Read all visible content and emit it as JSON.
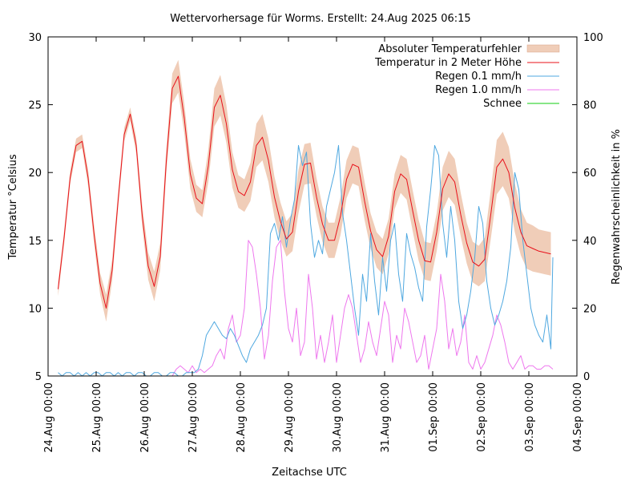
{
  "chart_data": {
    "type": "line",
    "title": "Wettervorhersage für Worms. Erstellt: 24.Aug 2025 06:15",
    "xlabel": "Zeitachse UTC",
    "ylabel": "Temperatur °Celsius",
    "y2label": "Regenwahrscheinlichkeit in %",
    "x_unit": "hours since 24.Aug 00:00",
    "xlim_hours": [
      0,
      264
    ],
    "ylim": [
      5,
      30
    ],
    "y2lim": [
      0,
      100
    ],
    "grid": false,
    "legend_position": "top-right",
    "x_ticks": [
      "24.Aug 00:00",
      "25.Aug 00:00",
      "26.Aug 00:00",
      "27.Aug 00:00",
      "28.Aug 00:00",
      "29.Aug 00:00",
      "30.Aug 00:00",
      "31.Aug 00:00",
      "01.Sep 00:00",
      "02.Sep 00:00",
      "03.Sep 00:00",
      "04.Sep 00:00"
    ],
    "y_ticks": [
      "5",
      "10",
      "15",
      "20",
      "25",
      "30"
    ],
    "y2_ticks": [
      "0",
      "20",
      "40",
      "60",
      "80",
      "100"
    ],
    "legend": [
      {
        "name": "Absoluter Temperaturfehler",
        "kind": "band",
        "color": "#f0cdb8"
      },
      {
        "name": "Temperatur in 2 Meter Höhe",
        "kind": "line",
        "color": "#e8101a"
      },
      {
        "name": "Regen 0.1 mm/h",
        "kind": "line",
        "color": "#4fa8e0"
      },
      {
        "name": "Regen 1.0 mm/h",
        "kind": "line",
        "color": "#ee77ee"
      },
      {
        "name": "Schnee",
        "kind": "line",
        "color": "#11cc11"
      }
    ],
    "temperature": {
      "hours": [
        5,
        8,
        11,
        14,
        17,
        20,
        23,
        26,
        29,
        32,
        35,
        38,
        41,
        44,
        47,
        50,
        53,
        56,
        59,
        62,
        65,
        68,
        71,
        74,
        77,
        80,
        83,
        86,
        89,
        92,
        95,
        98,
        101,
        104,
        107,
        110,
        113,
        116,
        119,
        122,
        125,
        128,
        131,
        134,
        137,
        140,
        143,
        146,
        149,
        152,
        155,
        158,
        161,
        164,
        167,
        170,
        173,
        176,
        179,
        182,
        185,
        188,
        191,
        194,
        197,
        200,
        203,
        206,
        209,
        212,
        215,
        218,
        221,
        224,
        227,
        230,
        233,
        236,
        239,
        242,
        245,
        248,
        251
      ],
      "values": [
        11.4,
        15.2,
        19.6,
        22.0,
        22.3,
        19.6,
        15.4,
        11.8,
        10.0,
        12.8,
        18.0,
        22.8,
        24.3,
        22.0,
        16.8,
        13.1,
        11.6,
        13.8,
        20.8,
        26.2,
        27.1,
        24.0,
        19.9,
        18.1,
        17.7,
        20.5,
        24.8,
        25.7,
        23.6,
        20.2,
        18.6,
        18.3,
        19.3,
        22.0,
        22.6,
        20.9,
        18.2,
        16.4,
        15.1,
        15.6,
        18.6,
        20.6,
        20.7,
        18.2,
        16.2,
        15.0,
        15.0,
        16.8,
        19.5,
        20.6,
        20.4,
        17.9,
        15.7,
        14.3,
        13.8,
        15.3,
        18.6,
        19.9,
        19.5,
        17.2,
        15.0,
        13.5,
        13.4,
        15.6,
        18.8,
        19.9,
        19.3,
        16.9,
        14.8,
        13.4,
        13.1,
        13.6,
        16.9,
        20.4,
        21.0,
        20.0,
        17.4,
        15.6,
        14.6,
        14.4,
        14.2,
        14.1,
        14.0
      ],
      "error_abs": [
        0.5,
        0.5,
        0.5,
        0.5,
        0.5,
        0.6,
        0.7,
        0.8,
        1.0,
        0.8,
        0.6,
        0.5,
        0.5,
        0.6,
        0.8,
        1.0,
        1.1,
        1.0,
        0.9,
        1.1,
        1.2,
        1.1,
        1.1,
        1.0,
        1.0,
        1.2,
        1.4,
        1.5,
        1.4,
        1.3,
        1.2,
        1.2,
        1.4,
        1.6,
        1.7,
        1.6,
        1.5,
        1.4,
        1.3,
        1.4,
        1.6,
        1.5,
        1.5,
        1.4,
        1.3,
        1.3,
        1.3,
        1.4,
        1.4,
        1.4,
        1.4,
        1.4,
        1.3,
        1.3,
        1.3,
        1.3,
        1.3,
        1.4,
        1.5,
        1.5,
        1.5,
        1.4,
        1.4,
        1.4,
        1.6,
        1.7,
        1.7,
        1.6,
        1.5,
        1.5,
        1.5,
        1.6,
        1.8,
        2.0,
        2.0,
        1.9,
        1.8,
        1.7,
        1.7,
        1.7,
        1.6,
        1.6,
        1.6
      ]
    },
    "rain_0_1_mmh": {
      "hours": [
        5,
        7,
        9,
        11,
        13,
        15,
        17,
        19,
        21,
        23,
        25,
        27,
        29,
        31,
        33,
        35,
        37,
        39,
        41,
        43,
        45,
        47,
        49,
        51,
        53,
        55,
        57,
        59,
        61,
        63,
        65,
        67,
        69,
        71,
        73,
        75,
        77,
        79,
        81,
        83,
        85,
        87,
        89,
        91,
        93,
        95,
        97,
        99,
        101,
        103,
        105,
        107,
        109,
        111,
        113,
        115,
        117,
        119,
        121,
        123,
        125,
        127,
        129,
        131,
        133,
        135,
        137,
        139,
        141,
        143,
        145,
        147,
        149,
        151,
        153,
        155,
        157,
        159,
        161,
        163,
        165,
        167,
        169,
        171,
        173,
        175,
        177,
        179,
        181,
        183,
        185,
        187,
        189,
        191,
        193,
        195,
        197,
        199,
        201,
        203,
        205,
        207,
        209,
        211,
        213,
        215,
        217,
        219,
        221,
        223,
        225,
        227,
        229,
        231,
        233,
        235,
        237,
        239,
        241,
        243,
        245,
        247,
        249,
        251,
        252
      ],
      "values": [
        1,
        0,
        1,
        1,
        0,
        1,
        0,
        1,
        0,
        1,
        1,
        0,
        1,
        1,
        0,
        1,
        0,
        1,
        1,
        0,
        1,
        1,
        0,
        0,
        1,
        1,
        0,
        0,
        1,
        1,
        0,
        0,
        1,
        1,
        1,
        2,
        6,
        12,
        14,
        16,
        14,
        12,
        11,
        14,
        12,
        9,
        6,
        4,
        8,
        10,
        12,
        15,
        20,
        42,
        45,
        40,
        47,
        38,
        46,
        52,
        68,
        62,
        66,
        45,
        35,
        40,
        36,
        50,
        55,
        60,
        68,
        48,
        40,
        30,
        20,
        12,
        30,
        22,
        42,
        28,
        18,
        35,
        25,
        40,
        45,
        30,
        22,
        42,
        36,
        32,
        26,
        22,
        44,
        55,
        68,
        65,
        45,
        35,
        50,
        40,
        22,
        14,
        18,
        25,
        35,
        50,
        45,
        28,
        20,
        15,
        18,
        22,
        28,
        38,
        60,
        55,
        40,
        30,
        20,
        15,
        12,
        10,
        18,
        8,
        35
      ],
      "note": "probability in % (right axis), approximate readings"
    },
    "rain_1_0_mmh": {
      "hours": [
        62,
        64,
        66,
        68,
        70,
        72,
        74,
        76,
        78,
        80,
        82,
        84,
        86,
        88,
        90,
        92,
        94,
        96,
        98,
        100,
        102,
        104,
        106,
        108,
        110,
        112,
        114,
        116,
        118,
        120,
        122,
        124,
        126,
        128,
        130,
        132,
        134,
        136,
        138,
        140,
        142,
        144,
        146,
        148,
        150,
        152,
        154,
        156,
        158,
        160,
        162,
        164,
        166,
        168,
        170,
        172,
        174,
        176,
        178,
        180,
        182,
        184,
        186,
        188,
        190,
        192,
        194,
        196,
        198,
        200,
        202,
        204,
        206,
        208,
        210,
        212,
        214,
        216,
        218,
        220,
        222,
        224,
        226,
        228,
        230,
        232,
        234,
        236,
        238,
        240,
        242,
        244,
        246,
        248,
        250,
        252
      ],
      "values": [
        0,
        2,
        3,
        2,
        1,
        3,
        1,
        2,
        1,
        2,
        3,
        6,
        8,
        5,
        14,
        18,
        10,
        12,
        20,
        40,
        38,
        30,
        20,
        5,
        12,
        28,
        38,
        40,
        25,
        14,
        10,
        20,
        6,
        10,
        30,
        20,
        5,
        12,
        4,
        10,
        18,
        4,
        12,
        20,
        24,
        20,
        12,
        4,
        8,
        16,
        10,
        6,
        14,
        22,
        18,
        4,
        12,
        8,
        20,
        16,
        10,
        4,
        6,
        12,
        2,
        8,
        14,
        30,
        22,
        8,
        14,
        6,
        10,
        18,
        4,
        2,
        6,
        2,
        4,
        8,
        12,
        18,
        15,
        10,
        4,
        2,
        4,
        6,
        2,
        3,
        3,
        2,
        2,
        3,
        3,
        2
      ],
      "note": "probability in % (right axis), approximate readings"
    },
    "snow": {
      "hours": [],
      "values": []
    }
  }
}
